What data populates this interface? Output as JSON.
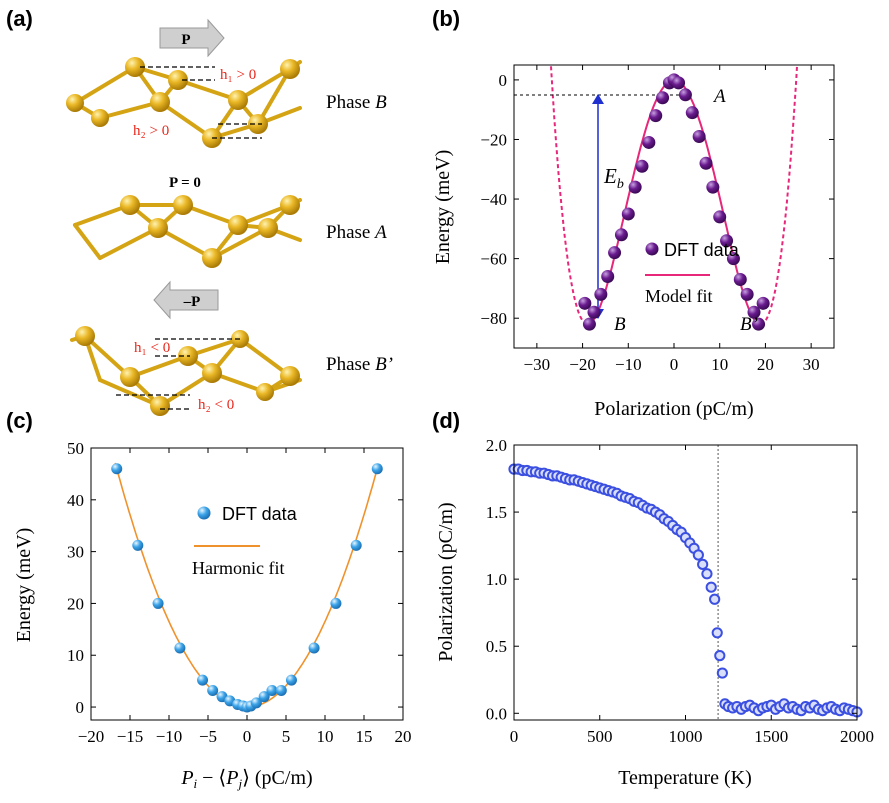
{
  "labels": {
    "a": "(a)",
    "b": "(b)",
    "c": "(c)",
    "d": "(d)"
  },
  "panel_a": {
    "arrow_P": "P",
    "arrow_negP": "–P",
    "p_zero": "P = 0",
    "phase_b": "Phase ",
    "phase_b_var": "B",
    "phase_a": "Phase ",
    "phase_a_var": "A",
    "phase_bp": "Phase ",
    "phase_bp_var": "B’",
    "h1_pos": "h₁ > 0",
    "h2_pos": "h₂ > 0",
    "h1_neg": "h₁ < 0",
    "h2_neg": "h₂ < 0",
    "atom_color": "#e7b51d",
    "h_label_color": "#e8281c"
  },
  "chart_data": [
    {
      "id": "b",
      "type": "scatter",
      "xlabel": "Polarization (pC/m)",
      "ylabel": "Energy (meV)",
      "xlim": [
        -35,
        35
      ],
      "ylim": [
        -90,
        5
      ],
      "xticks": [
        -30,
        -20,
        -10,
        0,
        10,
        20,
        30
      ],
      "yticks": [
        0,
        -20,
        -40,
        -60,
        -80
      ],
      "xtick_labels": [
        "−30",
        "−20",
        "−10",
        "0",
        "10",
        "20",
        "30"
      ],
      "ytick_labels": [
        "0",
        "−20",
        "−40",
        "−60",
        "−80"
      ],
      "fit_params": {
        "E_b": 82,
        "P0": 18.9
      },
      "series": [
        {
          "name": "DFT data",
          "color": "#6a1b8f",
          "x": [
            -19.5,
            -18.5,
            -17.5,
            -16,
            -14.5,
            -13,
            -11.5,
            -10,
            -8.5,
            -7,
            -5.5,
            -4,
            -2.5,
            -1,
            0,
            1,
            2.5,
            4,
            5.5,
            7,
            8.5,
            10,
            11.5,
            13,
            14.5,
            16,
            17.5,
            18.5,
            19.5
          ],
          "y": [
            -75,
            -82,
            -78,
            -72,
            -66,
            -58,
            -52,
            -45,
            -36,
            -29,
            -21,
            -12,
            -6,
            -1,
            0,
            -1,
            -5,
            -11,
            -19,
            -28,
            -36,
            -46,
            -54,
            -60,
            -67,
            -72,
            -78,
            -82,
            -75
          ]
        },
        {
          "name": "Model fit",
          "color": "#e8267a"
        }
      ],
      "annotations": {
        "A": "A",
        "B": "B",
        "Bp": "B’",
        "Eb": "E",
        "Eb_sub": "b"
      }
    },
    {
      "id": "c",
      "type": "scatter",
      "xlabel_parts": [
        "P",
        "i",
        " − ⟨",
        "P",
        "j",
        "⟩ (pC/m)"
      ],
      "ylabel": "Energy (meV)",
      "xlim": [
        -20,
        20
      ],
      "ylim": [
        -2.5,
        50
      ],
      "xticks": [
        -20,
        -15,
        -10,
        -5,
        0,
        5,
        10,
        15,
        20
      ],
      "yticks": [
        0,
        10,
        20,
        30,
        40,
        50
      ],
      "xtick_labels": [
        "−20",
        "−15",
        "−10",
        "−5",
        "0",
        "5",
        "10",
        "15",
        "20"
      ],
      "ytick_labels": [
        "0",
        "10",
        "20",
        "30",
        "40",
        "50"
      ],
      "series": [
        {
          "name": "DFT data",
          "color": "#3ba3e8",
          "x": [
            -16.7,
            -14,
            -11.4,
            -8.6,
            -5.7,
            -4.4,
            -3.2,
            -2.2,
            -1.2,
            -0.5,
            0,
            0.5,
            1.2,
            2.2,
            3.2,
            4.4,
            5.7,
            8.6,
            11.4,
            14,
            16.7
          ],
          "y": [
            46,
            31.2,
            20,
            11.4,
            5.2,
            3.2,
            2,
            1.2,
            0.5,
            0.2,
            0,
            0.2,
            0.8,
            2,
            3.2,
            3.2,
            5.2,
            11.4,
            20,
            31.2,
            46
          ]
        },
        {
          "name": "Harmonic fit",
          "color": "#f0922c",
          "coefficient": 0.165
        }
      ]
    },
    {
      "id": "d",
      "type": "scatter",
      "xlabel": "Temperature (K)",
      "ylabel": "Polarization (pC/m)",
      "xlim": [
        0,
        2000
      ],
      "ylim": [
        -0.05,
        2.0
      ],
      "xticks": [
        0,
        500,
        1000,
        1500,
        2000
      ],
      "yticks": [
        0.0,
        0.5,
        1.0,
        1.5,
        2.0
      ],
      "xtick_labels": [
        "0",
        "500",
        "1000",
        "1500",
        "2000"
      ],
      "ytick_labels": [
        "0.0",
        "0.5",
        "1.0",
        "1.5",
        "2.0"
      ],
      "transition_T": 1190,
      "series": [
        {
          "name": "Polarization",
          "color": "#3b4fe0",
          "x": [
            0,
            25,
            50,
            75,
            100,
            125,
            150,
            175,
            200,
            225,
            250,
            275,
            300,
            325,
            350,
            375,
            400,
            425,
            450,
            475,
            500,
            525,
            550,
            575,
            600,
            625,
            650,
            675,
            700,
            725,
            750,
            775,
            800,
            825,
            850,
            875,
            900,
            925,
            950,
            975,
            1000,
            1025,
            1050,
            1075,
            1100,
            1125,
            1150,
            1170,
            1185,
            1200,
            1215,
            1230,
            1250,
            1275,
            1300,
            1325,
            1350,
            1375,
            1400,
            1425,
            1450,
            1475,
            1500,
            1525,
            1550,
            1575,
            1600,
            1625,
            1650,
            1675,
            1700,
            1725,
            1750,
            1775,
            1800,
            1825,
            1850,
            1875,
            1900,
            1925,
            1950,
            1975,
            2000
          ],
          "y": [
            1.82,
            1.82,
            1.81,
            1.81,
            1.8,
            1.8,
            1.79,
            1.79,
            1.78,
            1.77,
            1.77,
            1.76,
            1.75,
            1.74,
            1.74,
            1.73,
            1.72,
            1.71,
            1.7,
            1.69,
            1.68,
            1.67,
            1.66,
            1.65,
            1.64,
            1.62,
            1.61,
            1.6,
            1.58,
            1.57,
            1.55,
            1.53,
            1.52,
            1.5,
            1.48,
            1.45,
            1.43,
            1.4,
            1.37,
            1.35,
            1.31,
            1.27,
            1.23,
            1.18,
            1.11,
            1.04,
            0.94,
            0.85,
            0.6,
            0.43,
            0.3,
            0.07,
            0.05,
            0.04,
            0.05,
            0.03,
            0.05,
            0.06,
            0.04,
            0.02,
            0.04,
            0.05,
            0.06,
            0.03,
            0.05,
            0.07,
            0.04,
            0.05,
            0.03,
            0.02,
            0.05,
            0.04,
            0.06,
            0.03,
            0.02,
            0.04,
            0.05,
            0.03,
            0.02,
            0.04,
            0.03,
            0.02,
            0.01
          ]
        }
      ]
    }
  ]
}
